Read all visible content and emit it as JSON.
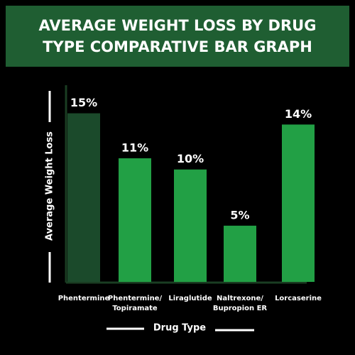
{
  "chart_data": {
    "type": "bar",
    "title": "AVERAGE WEIGHT LOSS BY DRUG\nTYPE COMPARATIVE BAR GRAPH",
    "x_label": "Drug Type",
    "y_label": "Average Weight Loss",
    "categories": [
      "Phentermine",
      "Phentermine/\nTopiramate",
      "Liraglutide",
      "Naltrexone/\nBupropion ER",
      "Lorcaserine"
    ],
    "values": [
      15,
      11,
      10,
      5,
      14
    ],
    "value_labels": [
      "15%",
      "11%",
      "10%",
      "5%",
      "14%"
    ],
    "colors": [
      "#1b4a2b",
      "#22a045",
      "#22a045",
      "#22a045",
      "#22a045"
    ],
    "ylim": [
      0,
      17.5
    ]
  }
}
